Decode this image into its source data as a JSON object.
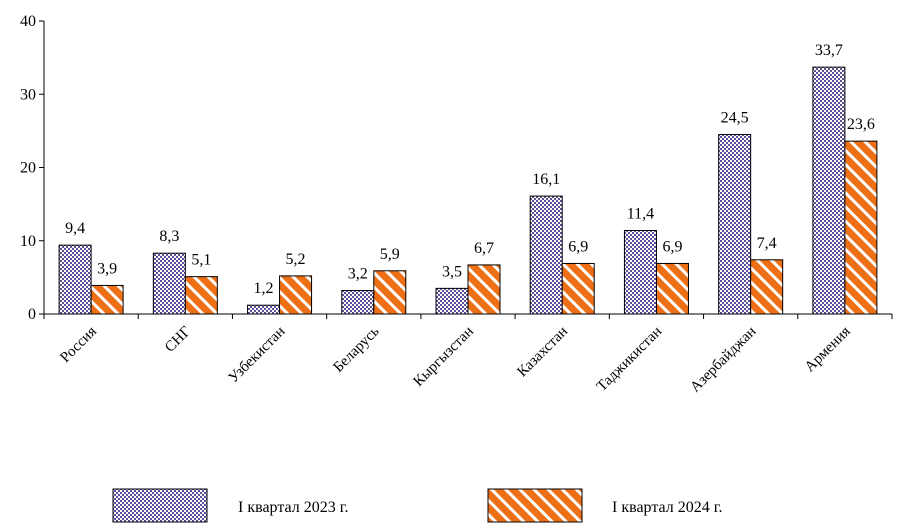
{
  "chart_data": {
    "type": "bar",
    "categories": [
      "Россия",
      "СНГ",
      "Узбекистан",
      "Беларусь",
      "Кыргызстан",
      "Казахстан",
      "Таджикистан",
      "Азербайджан",
      "Армения"
    ],
    "series": [
      {
        "name": "I квартал 2023 г.",
        "values": [
          9.4,
          8.3,
          1.2,
          3.2,
          3.5,
          16.1,
          11.4,
          24.5,
          33.7
        ],
        "labels": [
          "9,4",
          "8,3",
          "1,2",
          "3,2",
          "3,5",
          "16,1",
          "11,4",
          "24,5",
          "33,7"
        ],
        "color": "#5b4f9c",
        "pattern": "checkered"
      },
      {
        "name": "I квартал 2024 г.",
        "values": [
          3.9,
          5.1,
          5.2,
          5.9,
          6.7,
          6.9,
          6.9,
          7.4,
          23.6
        ],
        "labels": [
          "3,9",
          "5,1",
          "5,2",
          "5,9",
          "6,7",
          "6,9",
          "6,9",
          "7,4",
          "23,6"
        ],
        "color": "#ee7016",
        "pattern": "diagonal-stripes"
      }
    ],
    "ylim": [
      0,
      40
    ],
    "yticks": [
      "0",
      "10",
      "20",
      "30",
      "40"
    ],
    "title": "",
    "xlabel": "",
    "ylabel": "",
    "grid": false,
    "legend_position": "bottom"
  }
}
